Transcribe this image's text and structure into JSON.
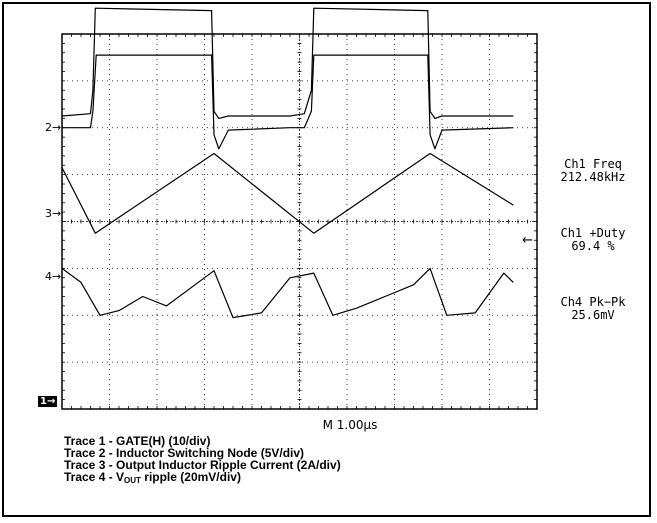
{
  "chart_data": {
    "type": "line",
    "title": "",
    "xlabel": "",
    "ylabel": "",
    "grid": true,
    "timebase": "M 1.00µs",
    "x_divisions": 10,
    "y_divisions": 8,
    "series": [
      {
        "name": "Trace 1 - GATE(H) (10/div)",
        "marker": "1",
        "x": [
          0,
          0.6,
          0.65,
          0.7,
          3.15,
          3.2,
          3.3,
          3.5,
          4.8,
          5.1,
          5.25,
          5.3,
          7.7,
          7.75,
          7.85,
          8.0,
          9.5
        ],
        "y": [
          6.05,
          6.1,
          6.6,
          8.35,
          8.3,
          6.15,
          6.0,
          6.05,
          6.05,
          6.1,
          6.6,
          8.35,
          8.3,
          6.15,
          6.0,
          6.05,
          6.05
        ]
      },
      {
        "name": "Trace 2 - Inductor Switching Node (5V/div)",
        "marker": "2",
        "x": [
          0,
          0.6,
          0.65,
          0.72,
          3.15,
          3.2,
          3.3,
          3.5,
          4.8,
          5.1,
          5.25,
          5.3,
          7.7,
          7.75,
          7.85,
          8.0,
          9.5
        ],
        "y": [
          0.05,
          0.05,
          0.4,
          1.6,
          1.6,
          -0.1,
          -0.4,
          0.0,
          0.05,
          0.05,
          0.4,
          1.6,
          1.6,
          -0.1,
          -0.4,
          0.0,
          0.05
        ]
      },
      {
        "name": "Trace 3 - Output Inductor Ripple Current (2A/div)",
        "marker": "3",
        "x": [
          0,
          0.7,
          3.2,
          5.3,
          7.75,
          9.5
        ],
        "y": [
          1.3,
          -0.1,
          1.6,
          -0.1,
          1.6,
          0.5
        ]
      },
      {
        "name": "Trace 4 - VOUT ripple (20mV/div)",
        "marker": "4",
        "x": [
          0,
          0.4,
          0.8,
          1.2,
          1.7,
          2.2,
          2.8,
          3.2,
          3.6,
          4.2,
          4.8,
          5.3,
          5.7,
          6.2,
          6.8,
          7.4,
          7.75,
          8.1,
          8.7,
          9.3,
          9.5
        ],
        "y": [
          0.5,
          0.2,
          -0.5,
          -0.4,
          -0.1,
          -0.3,
          0.15,
          0.45,
          -0.55,
          -0.45,
          0.3,
          0.4,
          -0.5,
          -0.35,
          -0.1,
          0.15,
          0.5,
          -0.5,
          -0.45,
          0.4,
          0.2
        ]
      }
    ],
    "measurements": [
      {
        "label": "Ch1 Freq",
        "value": "212.48kHz"
      },
      {
        "label": "Ch1 +Duty",
        "value": "69.4 %"
      },
      {
        "label": "Ch4 Pk−Pk",
        "value": "25.6mV"
      }
    ]
  },
  "legend": {
    "line1": "Trace 1 - GATE(H) (10/div)",
    "line2": "Trace 2 - Inductor Switching Node (5V/div)",
    "line3": "Trace 3 - Output Inductor Ripple Current (2A/div)",
    "line4_pre": "Trace 4 - V",
    "line4_sub": "OUT",
    "line4_post": " ripple (20mV/div)"
  },
  "markers": {
    "ch2": "2→",
    "ch3": "3→",
    "ch4": "4→",
    "ch1": "1→",
    "trigger": "←"
  }
}
